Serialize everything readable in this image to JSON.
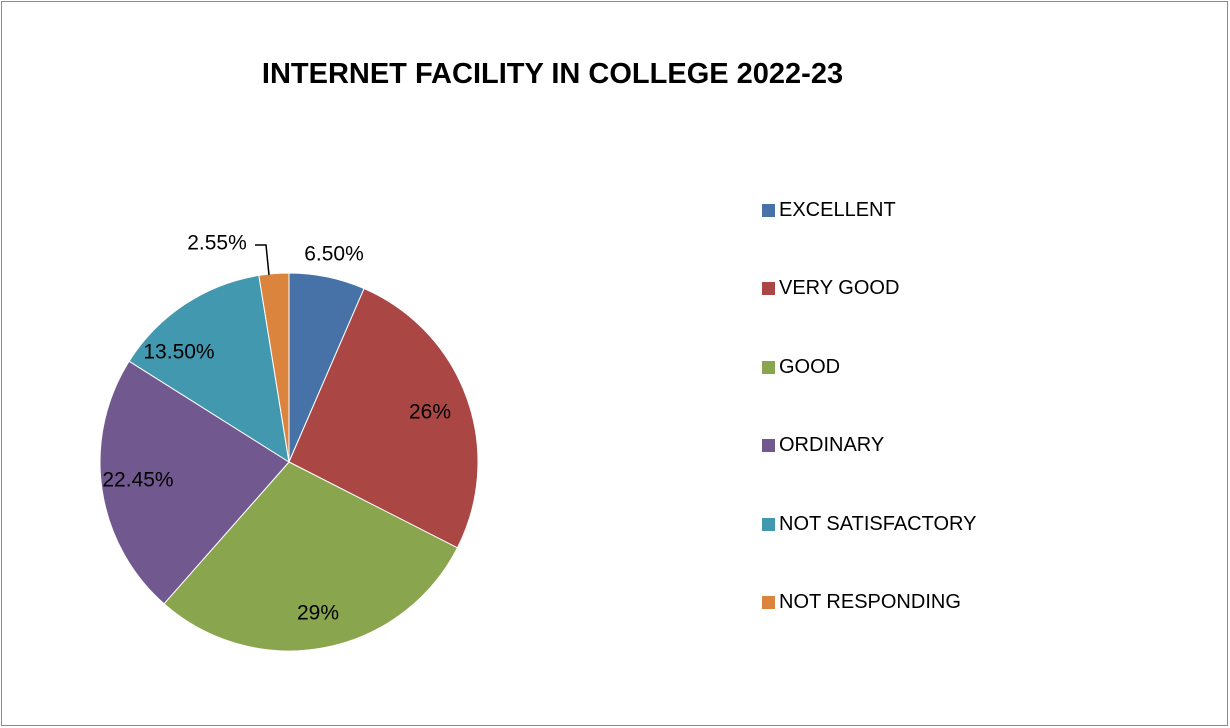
{
  "chart_data": {
    "type": "pie",
    "title": "INTERNET FACILITY IN COLLEGE 2022-23",
    "legend_position": "right",
    "slices": [
      {
        "label": "EXCELLENT",
        "value": 6.5,
        "display": "6.50%",
        "color": "#4672A8"
      },
      {
        "label": "VERY GOOD",
        "value": 26,
        "display": "26%",
        "color": "#AA4644"
      },
      {
        "label": "GOOD",
        "value": 29,
        "display": "29%",
        "color": "#89A54E"
      },
      {
        "label": "ORDINARY",
        "value": 22.45,
        "display": "22.45%",
        "color": "#71588F"
      },
      {
        "label": "NOT SATISFACTORY",
        "value": 13.5,
        "display": "13.50%",
        "color": "#4298AF"
      },
      {
        "label": "NOT RESPONDING",
        "value": 2.55,
        "display": "2.55%",
        "color": "#DB843D"
      }
    ]
  }
}
